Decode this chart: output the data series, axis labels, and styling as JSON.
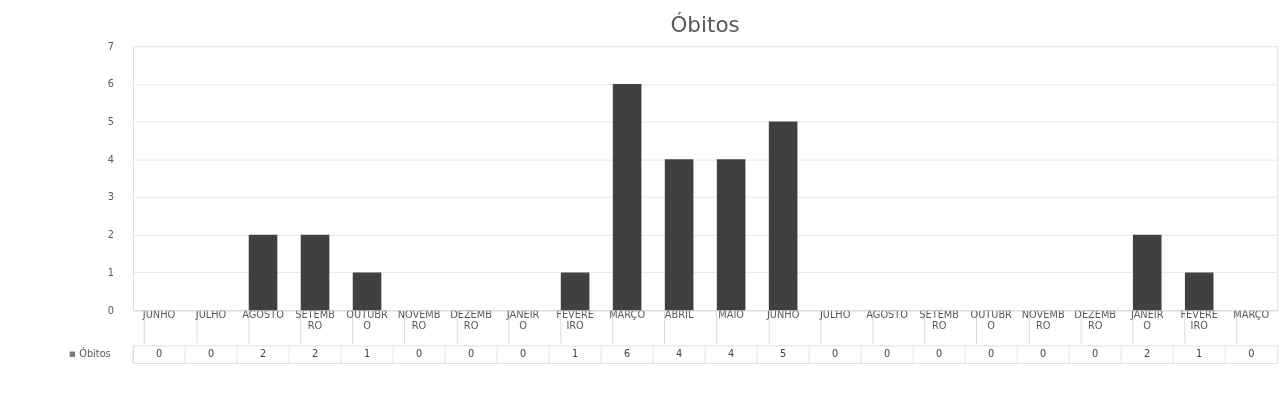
{
  "chart_data": {
    "type": "bar",
    "title": "Óbitos",
    "categories": [
      "JUNHO",
      "JULHO",
      "AGOSTO",
      "SETEMBRO",
      "OUTUBRO",
      "NOVEMBRO",
      "DEZEMBRO",
      "JANEIRO",
      "FEVEREIRO",
      "MARÇO",
      "ABRIL",
      "MAIO",
      "JUNHO",
      "JULHO",
      "AGOSTO",
      "SETEMBRO",
      "OUTUBRO",
      "NOVEMBRO",
      "DEZEMBRO",
      "JANEIRO",
      "FEVEREIRO",
      "MARÇO"
    ],
    "series": [
      {
        "name": "Óbitos",
        "color": "#404040",
        "values": [
          0,
          0,
          2,
          2,
          1,
          0,
          0,
          0,
          1,
          6,
          4,
          4,
          5,
          0,
          0,
          0,
          0,
          0,
          0,
          2,
          1,
          0
        ]
      }
    ],
    "ylim": [
      0,
      7
    ],
    "yticks": [
      0,
      1,
      2,
      3,
      4,
      5,
      6,
      7
    ],
    "grid": "y",
    "data_labels": true,
    "legend": "bottom left"
  }
}
